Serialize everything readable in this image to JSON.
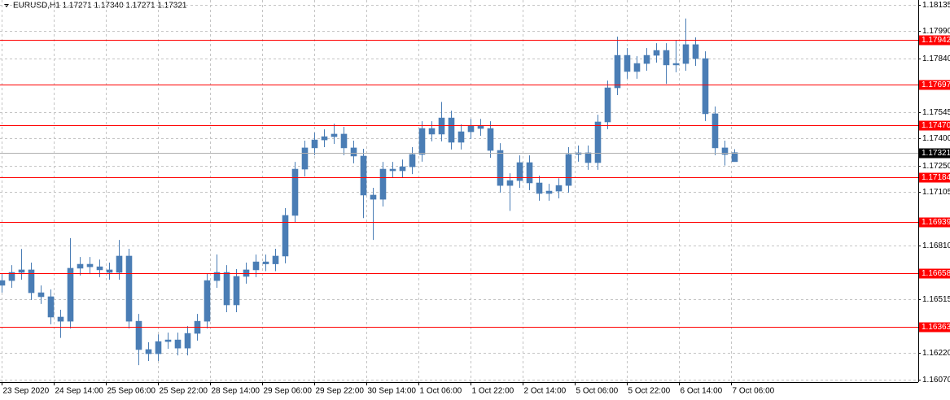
{
  "chart_data": {
    "type": "candlestick",
    "title": "EURUSD,H1  1.17271 1.17340 1.17271 1.17321",
    "color": "#4a7db5",
    "level_color": "#ff0000",
    "grid": true,
    "xlim": [
      -0.5,
      281.5
    ],
    "ylim": [
      1.1607,
      1.18135
    ],
    "xticks": [
      {
        "value": 0,
        "label": "23 Sep 2020"
      },
      {
        "value": 16,
        "label": "24 Sep 14:00"
      },
      {
        "value": 32,
        "label": "25 Sep 06:00"
      },
      {
        "value": 48,
        "label": "25 Sep 22:00"
      },
      {
        "value": 64,
        "label": "28 Sep 14:00"
      },
      {
        "value": 80,
        "label": "29 Sep 06:00"
      },
      {
        "value": 96,
        "label": "29 Sep 22:00"
      },
      {
        "value": 112,
        "label": "30 Sep 14:00"
      },
      {
        "value": 128,
        "label": "1 Oct 06:00"
      },
      {
        "value": 144,
        "label": "1 Oct 22:00"
      },
      {
        "value": 160,
        "label": "2 Oct 14:00"
      },
      {
        "value": 176,
        "label": "5 Oct 06:00"
      },
      {
        "value": 192,
        "label": "5 Oct 22:00"
      },
      {
        "value": 208,
        "label": "6 Oct 14:00"
      },
      {
        "value": 224,
        "label": "7 Oct 06:00"
      }
    ],
    "yticks": [
      1.18135,
      {
        "value": 1.1799,
        "label": "1.17990"
      },
      {
        "value": 1.1784,
        "label": "1.17840"
      },
      1.17545,
      {
        "value": 1.174,
        "label": "1.17400"
      },
      {
        "value": 1.1725,
        "label": "1.17250"
      },
      1.17105,
      {
        "value": 1.1681,
        "label": "1.16810"
      },
      1.16515,
      {
        "value": 1.1622,
        "label": "1.16220"
      },
      {
        "value": 1.1607,
        "label": "1.16070"
      }
    ],
    "levels": [
      1.17942,
      1.17697,
      {
        "value": 1.1747,
        "label": "1.17470"
      },
      1.17184,
      1.16939,
      1.16658,
      1.16363
    ],
    "current_price": 1.17321,
    "x": [
      0,
      3,
      6,
      9,
      12,
      15,
      18,
      21,
      24,
      27,
      30,
      33,
      36,
      39,
      42,
      45,
      48,
      51,
      54,
      57,
      60,
      63,
      66,
      69,
      72,
      75,
      78,
      81,
      84,
      87,
      90,
      93,
      96,
      99,
      102,
      105,
      108,
      111,
      114,
      117,
      120,
      123,
      126,
      129,
      132,
      135,
      138,
      141,
      144,
      147,
      150,
      153,
      156,
      159,
      162,
      165,
      168,
      171,
      174,
      177,
      180,
      183,
      186,
      189,
      192,
      195,
      198,
      201,
      204,
      207,
      210,
      213,
      216,
      219,
      222,
      225
    ],
    "open": [
      1.1659,
      1.16616,
      1.16661,
      1.16675,
      1.16549,
      1.16527,
      1.16415,
      1.16392,
      1.16684,
      1.16706,
      1.16692,
      1.16675,
      1.16661,
      1.16751,
      1.16392,
      1.16236,
      1.16213,
      1.1628,
      1.16289,
      1.16244,
      1.16325,
      1.16392,
      1.16616,
      1.16661,
      1.16482,
      1.16639,
      1.16675,
      1.16719,
      1.16708,
      1.16751,
      1.16975,
      1.1723,
      1.17347,
      1.17391,
      1.17409,
      1.17423,
      1.17347,
      1.17302,
      1.17087,
      1.17064,
      1.1723,
      1.17221,
      1.17243,
      1.17311,
      1.17454,
      1.17423,
      1.17512,
      1.17378,
      1.17436,
      1.17467,
      1.17454,
      1.17333,
      1.1714,
      1.17167,
      1.17266,
      1.17154,
      1.17096,
      1.17109,
      1.1714,
      1.17311,
      1.1732,
      1.17266,
      1.1749,
      1.17678,
      1.17857,
      1.17768,
      1.17812,
      1.17857,
      1.17884,
      1.17804,
      1.17812,
      1.17916,
      1.17839,
      1.17535,
      1.17347,
      1.17271
    ],
    "high": [
      1.16656,
      1.16701,
      1.1679,
      1.16715,
      1.16589,
      1.16567,
      1.16455,
      1.1685,
      1.16746,
      1.16746,
      1.16732,
      1.16715,
      1.1684,
      1.16791,
      1.16432,
      1.16276,
      1.1632,
      1.16329,
      1.16329,
      1.16365,
      1.16432,
      1.16656,
      1.1676,
      1.16701,
      1.16679,
      1.16715,
      1.16759,
      1.16759,
      1.16791,
      1.17015,
      1.1727,
      1.17387,
      1.17431,
      1.17449,
      1.1748,
      1.17463,
      1.17387,
      1.17342,
      1.17127,
      1.1727,
      1.1727,
      1.17283,
      1.17351,
      1.17494,
      1.17494,
      1.176,
      1.17552,
      1.17476,
      1.17507,
      1.17507,
      1.17494,
      1.17373,
      1.17207,
      1.17306,
      1.17306,
      1.17194,
      1.17149,
      1.1718,
      1.17351,
      1.1736,
      1.1736,
      1.1753,
      1.17718,
      1.1796,
      1.17897,
      1.17852,
      1.17897,
      1.17924,
      1.17924,
      1.1794,
      1.1806,
      1.17956,
      1.17879,
      1.17575,
      1.17387,
      1.1734
    ],
    "low": [
      1.1655,
      1.16576,
      1.16621,
      1.16509,
      1.16487,
      1.16375,
      1.163,
      1.16352,
      1.16644,
      1.16652,
      1.16635,
      1.16621,
      1.16621,
      1.16352,
      1.1615,
      1.16173,
      1.16173,
      1.1624,
      1.16204,
      1.16204,
      1.16285,
      1.16352,
      1.16576,
      1.16442,
      1.16442,
      1.16599,
      1.16635,
      1.16668,
      1.16668,
      1.16711,
      1.16935,
      1.1719,
      1.17307,
      1.17351,
      1.17369,
      1.17307,
      1.17262,
      1.1696,
      1.1684,
      1.17024,
      1.17181,
      1.17181,
      1.17203,
      1.17271,
      1.17383,
      1.17383,
      1.17338,
      1.17338,
      1.17396,
      1.17414,
      1.17293,
      1.171,
      1.17,
      1.17127,
      1.17114,
      1.17056,
      1.17056,
      1.17069,
      1.171,
      1.17271,
      1.17226,
      1.17226,
      1.1745,
      1.17638,
      1.17728,
      1.17728,
      1.17772,
      1.17817,
      1.177,
      1.17764,
      1.17772,
      1.17799,
      1.17495,
      1.17307,
      1.1725,
      1.17271
    ],
    "close": [
      1.16616,
      1.16661,
      1.16675,
      1.16549,
      1.16527,
      1.16415,
      1.16392,
      1.16684,
      1.16706,
      1.16692,
      1.16675,
      1.16661,
      1.16751,
      1.16392,
      1.16236,
      1.16213,
      1.1628,
      1.16289,
      1.16244,
      1.16325,
      1.16392,
      1.16616,
      1.16661,
      1.16482,
      1.16639,
      1.16675,
      1.16719,
      1.16708,
      1.16751,
      1.16975,
      1.1723,
      1.17347,
      1.17391,
      1.17409,
      1.17423,
      1.17347,
      1.17302,
      1.17087,
      1.17064,
      1.1723,
      1.17221,
      1.17243,
      1.17311,
      1.17454,
      1.17423,
      1.17512,
      1.17378,
      1.17436,
      1.17467,
      1.17454,
      1.17333,
      1.1714,
      1.17167,
      1.17266,
      1.17154,
      1.17096,
      1.17109,
      1.1714,
      1.17311,
      1.1732,
      1.17266,
      1.1749,
      1.17678,
      1.17857,
      1.17768,
      1.17812,
      1.17857,
      1.17884,
      1.17804,
      1.17812,
      1.17916,
      1.17839,
      1.17535,
      1.17347,
      1.17311,
      1.17321
    ]
  }
}
